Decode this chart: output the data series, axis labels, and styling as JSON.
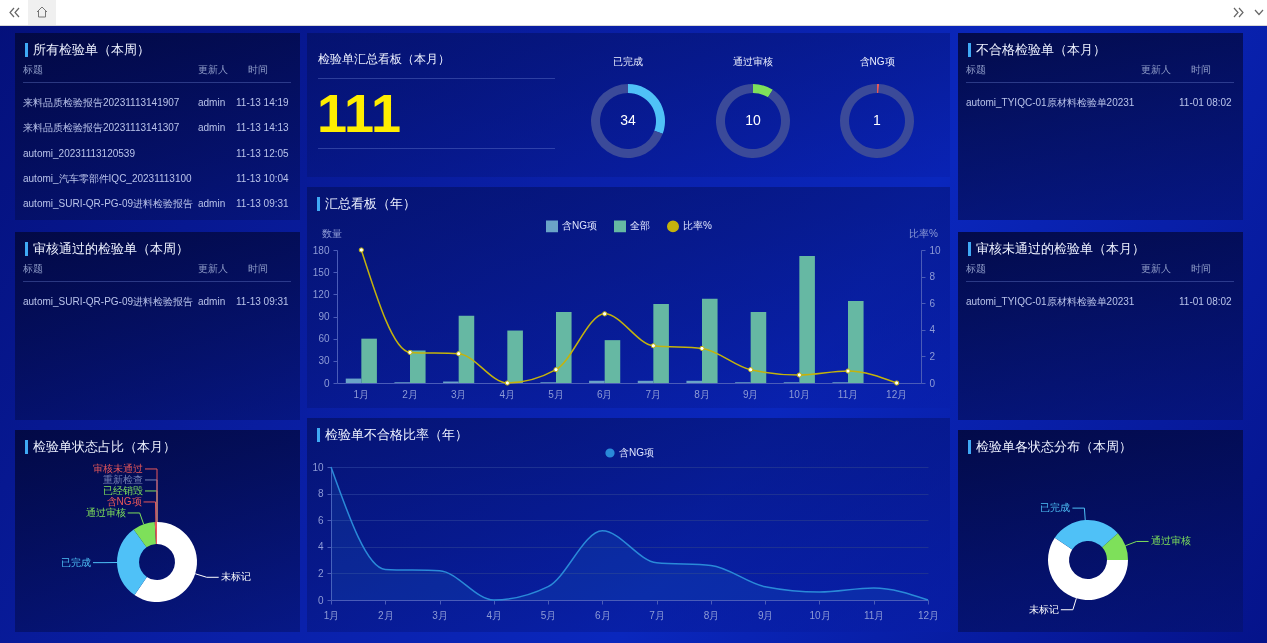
{
  "chart_data": [
    {
      "type": "other",
      "title": "所有检验单（本周）",
      "categories": [
        "标题",
        "更新人",
        "时间"
      ],
      "cell_labels": [
        [
          "来料品质检验报告20231113141907",
          "admin",
          "11-13 14:19"
        ],
        [
          "来料品质检验报告20231113141307",
          "admin",
          "11-13 14:13"
        ],
        [
          "automi_20231113120539",
          null,
          "11-13 12:05"
        ],
        [
          "automi_汽车零部件IQC_20231113100",
          null,
          "11-13 10:04"
        ],
        [
          "automi_SURI-QR-PG-09进料检验报告",
          "admin",
          "11-13 09:31"
        ]
      ]
    },
    {
      "type": "other",
      "title": "检验单汇总看板（本月）",
      "annotations": [
        "111"
      ]
    },
    {
      "type": "donut",
      "title": "已完成",
      "categories": [
        null,
        null
      ],
      "values": [
        34,
        77
      ],
      "colors": [
        "#4fc1f7",
        "#3b4a99"
      ],
      "value_labels": [
        "34",
        null
      ]
    },
    {
      "type": "donut",
      "title": "通过审核",
      "categories": [
        null,
        null
      ],
      "values": [
        10,
        101
      ],
      "colors": [
        "#7ee05a",
        "#3b4a99"
      ],
      "value_labels": [
        "10",
        null
      ]
    },
    {
      "type": "donut",
      "title": "含NG项",
      "categories": [
        null,
        null
      ],
      "values": [
        1,
        110
      ],
      "colors": [
        "#e8585a",
        "#3b4a99"
      ],
      "value_labels": [
        "1",
        null
      ]
    },
    {
      "type": "other",
      "title": "不合格检验单（本月）",
      "categories": [
        "标题",
        "更新人",
        "时间"
      ],
      "cell_labels": [
        [
          "automi_TYIQC-01原材料检验单20231",
          null,
          "11-01 08:02"
        ]
      ]
    },
    {
      "type": "bar",
      "title": "汇总看板（年）",
      "categories": [
        "1月",
        "2月",
        "3月",
        "4月",
        "5月",
        "6月",
        "7月",
        "8月",
        "9月",
        "10月",
        "11月",
        "12月"
      ],
      "series": [
        {
          "name": "含NG项",
          "type": "bar",
          "color": "#6aa4c8",
          "values": [
            6,
            1,
            2,
            0,
            1,
            3,
            3,
            3,
            1,
            1,
            1,
            0
          ]
        },
        {
          "name": "全部",
          "type": "bar",
          "color": "#66b8a3",
          "values": [
            60,
            44,
            91,
            71,
            96,
            58,
            107,
            114,
            96,
            172,
            111,
            0
          ]
        },
        {
          "name": "比率%",
          "type": "line",
          "axis": "y2",
          "color": "#c4b30c",
          "values": [
            10,
            2.3,
            2.2,
            0,
            1.0,
            5.2,
            2.8,
            2.6,
            1.0,
            0.6,
            0.9,
            0
          ]
        }
      ],
      "ylabel": "数量",
      "y2label": "比率%",
      "ylim": [
        0,
        180
      ],
      "yticks": [
        0,
        30,
        60,
        90,
        120,
        150,
        180
      ],
      "y2lim": [
        0,
        10
      ],
      "y2ticks": [
        0,
        2,
        4,
        6,
        8,
        10
      ],
      "legend": "top",
      "marker": "circle"
    },
    {
      "type": "other",
      "title": "审核通过的检验单（本周）",
      "categories": [
        "标题",
        "更新人",
        "时间"
      ],
      "cell_labels": [
        [
          "automi_SURI-QR-PG-09进料检验报告",
          "admin",
          "11-13 09:31"
        ]
      ]
    },
    {
      "type": "other",
      "title": "审核未通过的检验单（本月）",
      "categories": [
        "标题",
        "更新人",
        "时间"
      ],
      "cell_labels": [
        [
          "automi_TYIQC-01原材料检验单20231",
          null,
          "11-01 08:02"
        ]
      ]
    },
    {
      "type": "area",
      "title": "检验单不合格比率（年）",
      "categories": [
        "1月",
        "2月",
        "3月",
        "4月",
        "5月",
        "6月",
        "7月",
        "8月",
        "9月",
        "10月",
        "11月",
        "12月"
      ],
      "series": [
        {
          "name": "含NG项",
          "color": "#2a8ad8",
          "values": [
            10,
            2.3,
            2.2,
            0,
            1.0,
            5.2,
            2.8,
            2.6,
            1.0,
            0.6,
            0.9,
            0
          ]
        }
      ],
      "ylim": [
        0,
        10
      ],
      "yticks": [
        0,
        2,
        4,
        6,
        8,
        10
      ],
      "grid": "y",
      "legend": "top"
    },
    {
      "type": "donut",
      "title": "检验单状态占比（本月）",
      "categories": [
        "未标记",
        "已完成",
        "通过审核",
        "含NG项",
        "已经销毁",
        "重新检查",
        "审核未通过"
      ],
      "values": [
        59.5,
        30.6,
        9.0,
        0.9,
        0,
        0,
        0
      ],
      "colors": [
        "#ffffff",
        "#4fc1f7",
        "#7ee05a",
        "#e8585a",
        "#7ee05a",
        "#7682b4",
        "#e8585a"
      ]
    },
    {
      "type": "donut",
      "title": "检验单各状态分布（本周）",
      "categories": [
        "未标记",
        "已完成",
        "通过审核"
      ],
      "values": [
        59.4,
        29.0,
        11.6
      ],
      "colors": [
        "#ffffff",
        "#4fc1f7",
        "#7ee05a"
      ]
    }
  ]
}
